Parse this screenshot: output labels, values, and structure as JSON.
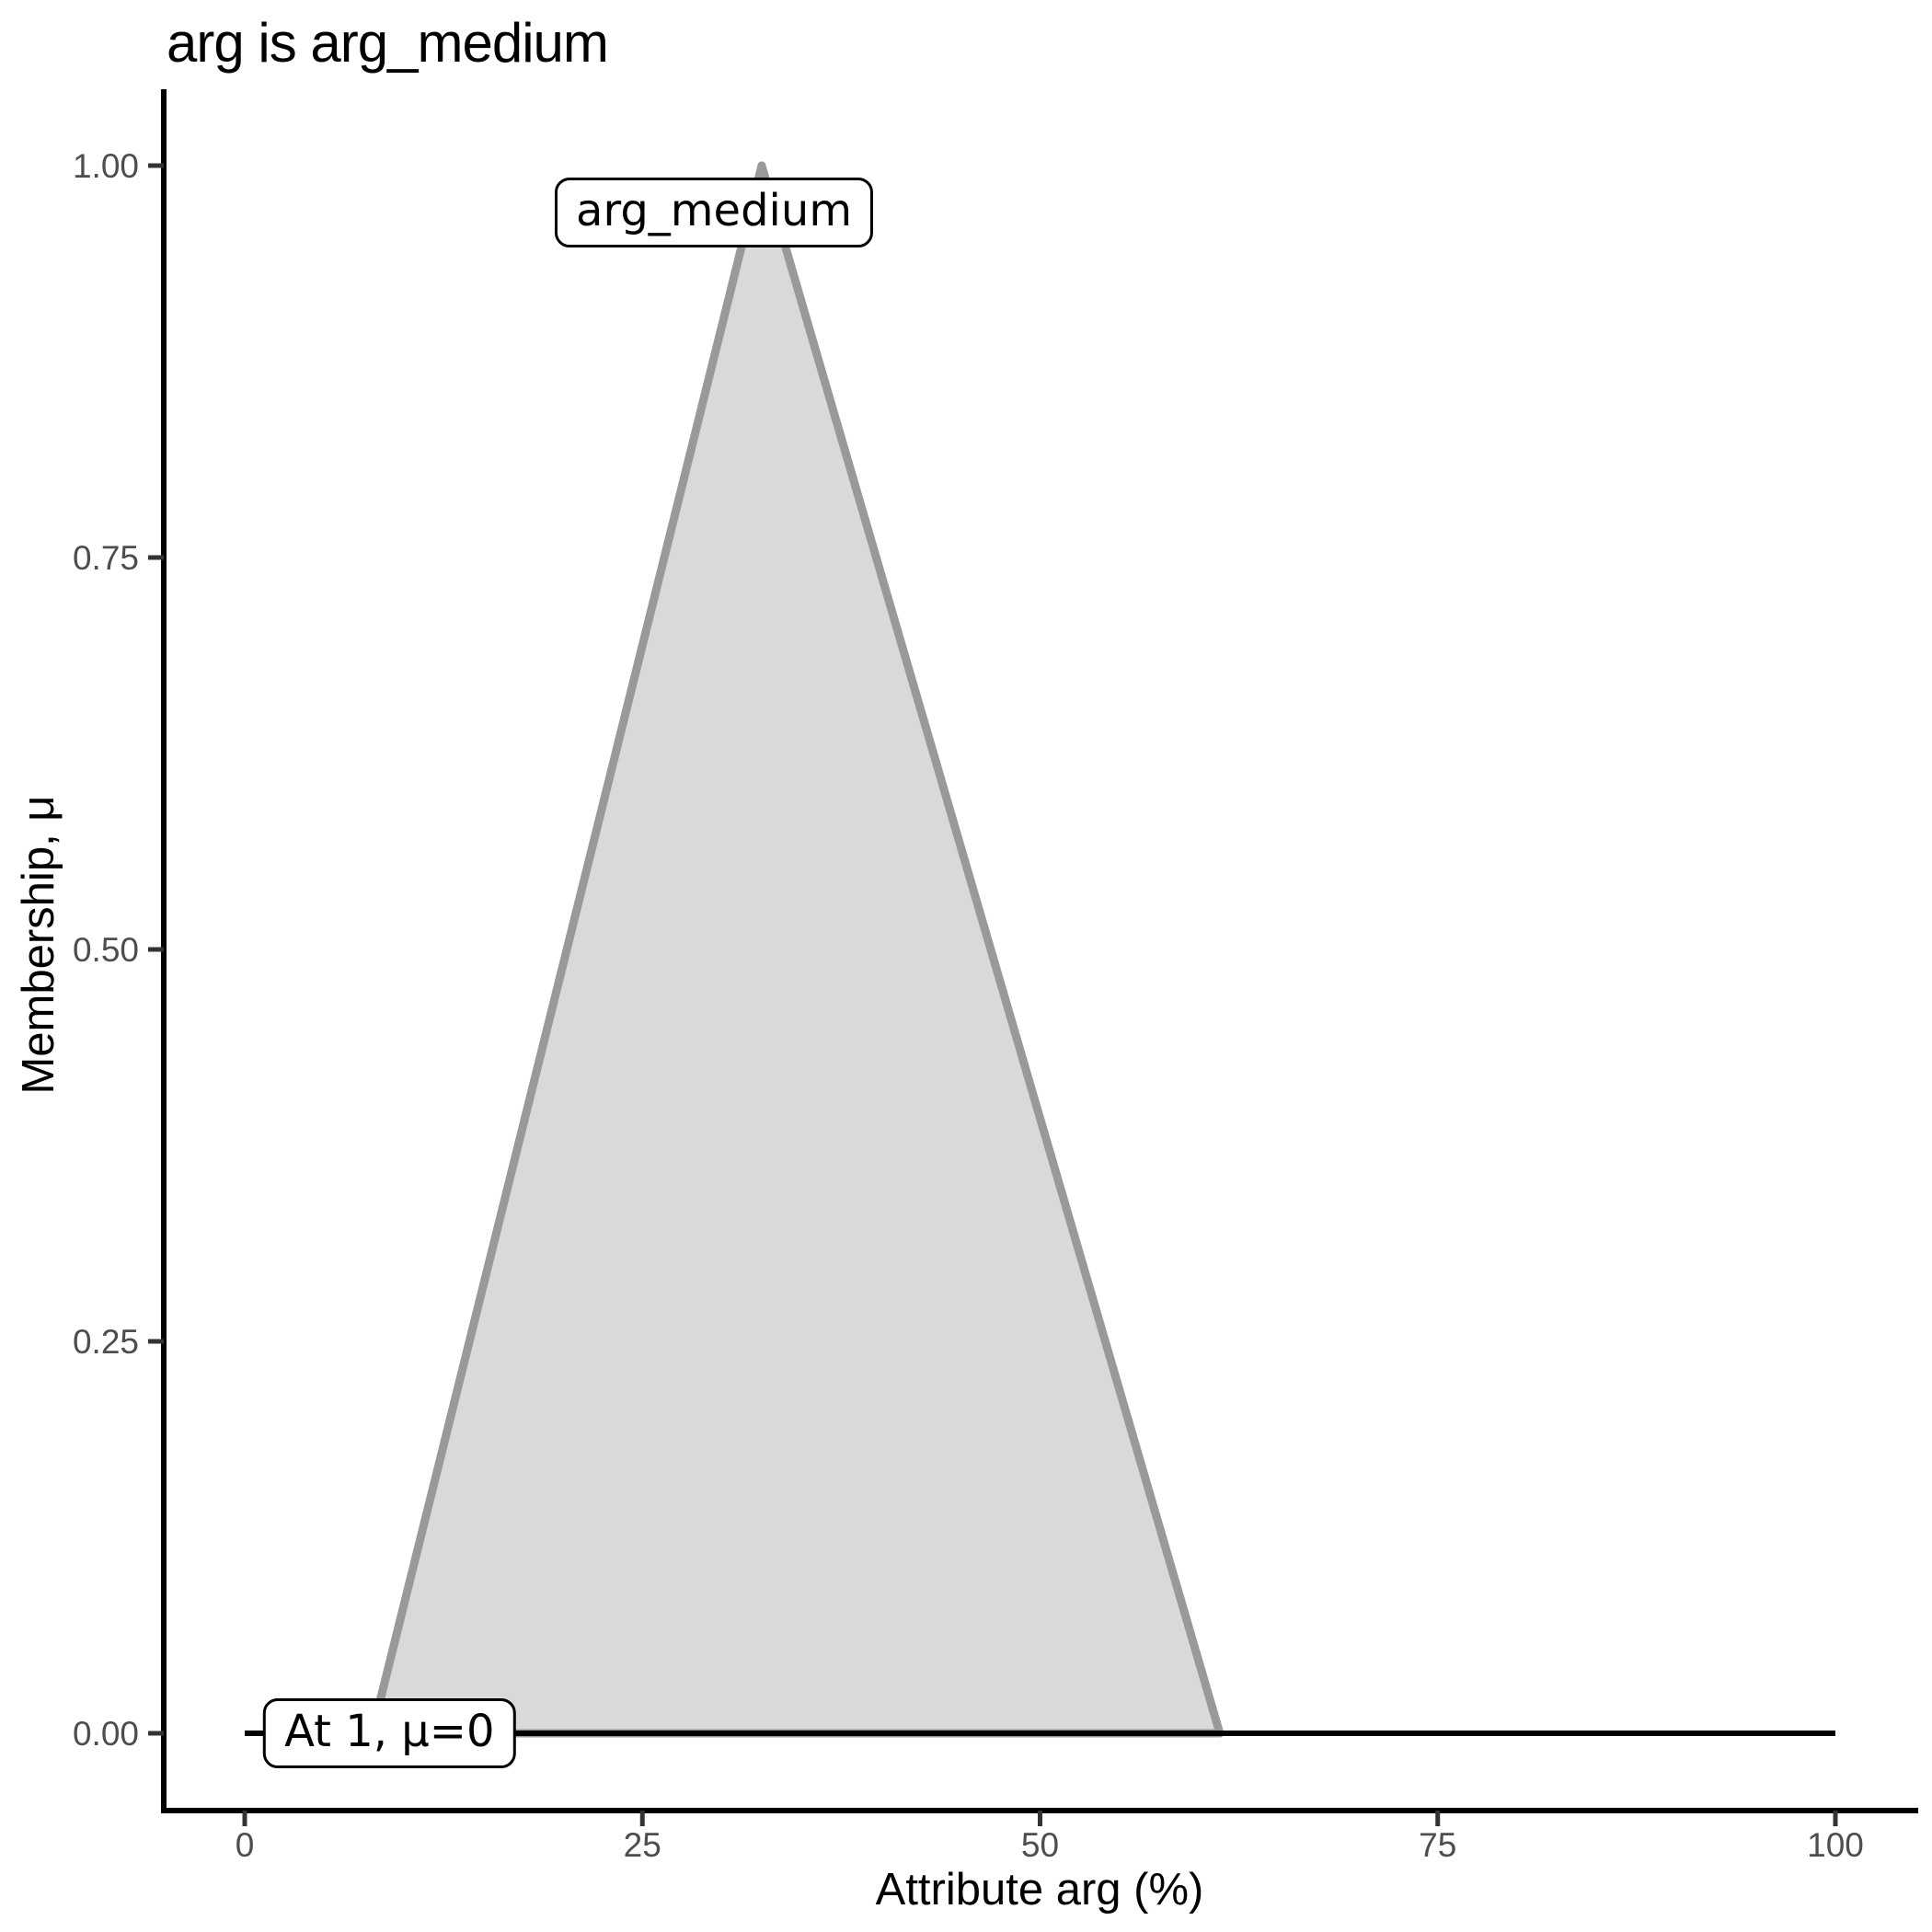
{
  "chart_data": {
    "type": "area",
    "title": "arg is arg_medium",
    "xlabel": "Attribute arg (%)",
    "ylabel": "Membership, μ",
    "xlim": [
      0,
      100
    ],
    "ylim": [
      0,
      1
    ],
    "x_ticks": [
      {
        "value": 0,
        "label": "0"
      },
      {
        "value": 25,
        "label": "25"
      },
      {
        "value": 50,
        "label": "50"
      },
      {
        "value": 75,
        "label": "75"
      },
      {
        "value": 100,
        "label": "100"
      }
    ],
    "y_ticks": [
      {
        "value": 0.0,
        "label": "0.00"
      },
      {
        "value": 0.25,
        "label": "0.25"
      },
      {
        "value": 0.5,
        "label": "0.50"
      },
      {
        "value": 0.75,
        "label": "0.75"
      },
      {
        "value": 1.0,
        "label": "1.00"
      }
    ],
    "grid": false,
    "legend": false,
    "series": [
      {
        "name": "arg_medium",
        "shape": "triangle-membership",
        "points": [
          [
            8,
            0
          ],
          [
            32.5,
            1
          ],
          [
            61.3,
            0
          ]
        ],
        "fill": "#d9d9d9",
        "stroke": "#999999"
      }
    ],
    "baseline": {
      "mu": 0,
      "x_start": 0,
      "x_end": 100,
      "color": "#000000"
    },
    "annotations": [
      {
        "text": "arg_medium",
        "x": 29.5,
        "mu": 0.97
      },
      {
        "text": "At 1, μ=0",
        "x": 9.1,
        "mu": 0.0
      }
    ],
    "colors": {
      "axis_line": "#000000",
      "tick_mark": "#333333",
      "tick_label": "#4d4d4d",
      "title_text": "#000000"
    }
  }
}
